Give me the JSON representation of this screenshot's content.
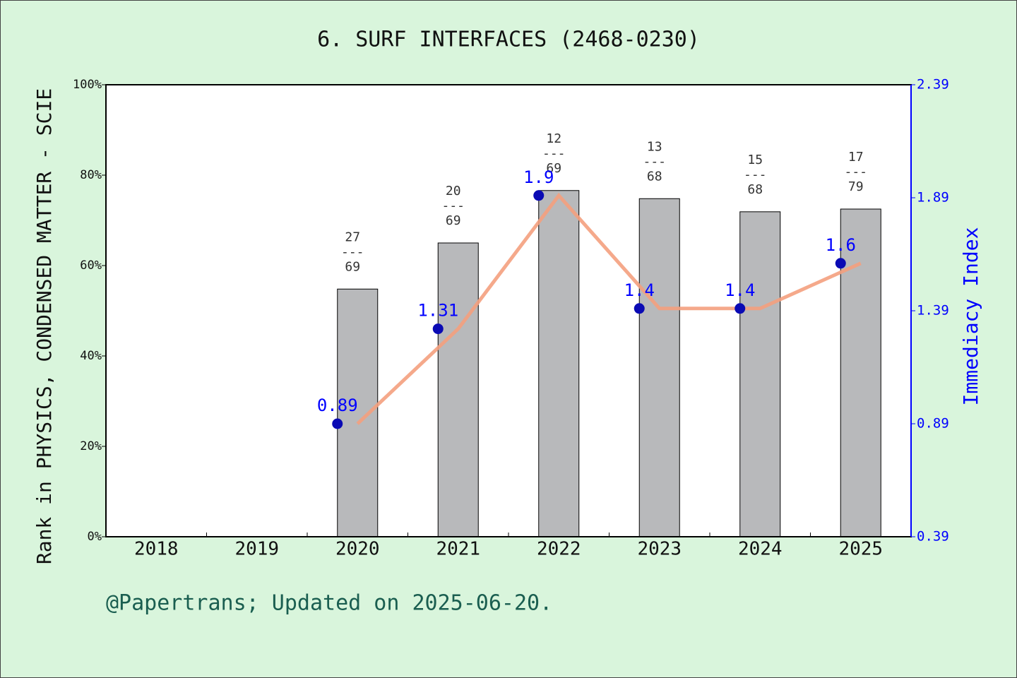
{
  "chart_data": {
    "type": "bar_line",
    "title": "6. SURF INTERFACES (2468-0230)",
    "y_label": "Rank in PHYSICS, CONDENSED MATTER - SCIE",
    "y2_label": "Immediacy Index",
    "footer": "@Papertrans; Updated on 2025-06-20.",
    "categories": [
      "2018",
      "2019",
      "2020",
      "2021",
      "2022",
      "2023",
      "2024",
      "2025"
    ],
    "ylim": [
      0,
      100
    ],
    "yticks": [
      {
        "value": 0,
        "label": "0%"
      },
      {
        "value": 20,
        "label": "20%"
      },
      {
        "value": 40,
        "label": "40%"
      },
      {
        "value": 60,
        "label": "60%"
      },
      {
        "value": 80,
        "label": "80%"
      },
      {
        "value": 100,
        "label": "100%"
      }
    ],
    "y2lim": [
      0.39,
      2.39
    ],
    "y2ticks": [
      0.39,
      0.89,
      1.39,
      1.89,
      2.39
    ],
    "series": [
      {
        "type": "bar",
        "color": "#b8b9bb",
        "values": [
          null,
          null,
          54.8,
          65,
          76.6,
          74.8,
          71.9,
          72.5
        ],
        "value_labels": [
          null,
          null,
          [
            "27",
            "---",
            "69"
          ],
          [
            "20",
            "---",
            "69"
          ],
          [
            "12",
            "---",
            "69"
          ],
          [
            "13",
            "---",
            "68"
          ],
          [
            "15",
            "---",
            "68"
          ],
          [
            "17",
            "---",
            "79"
          ]
        ]
      },
      {
        "type": "line",
        "axis": "y2",
        "color": "#f4a07e",
        "marker_color": "#0a0ab4",
        "label_color": "#0000ff",
        "values": [
          null,
          null,
          0.89,
          1.31,
          1.9,
          1.4,
          1.4,
          1.6
        ]
      }
    ]
  }
}
